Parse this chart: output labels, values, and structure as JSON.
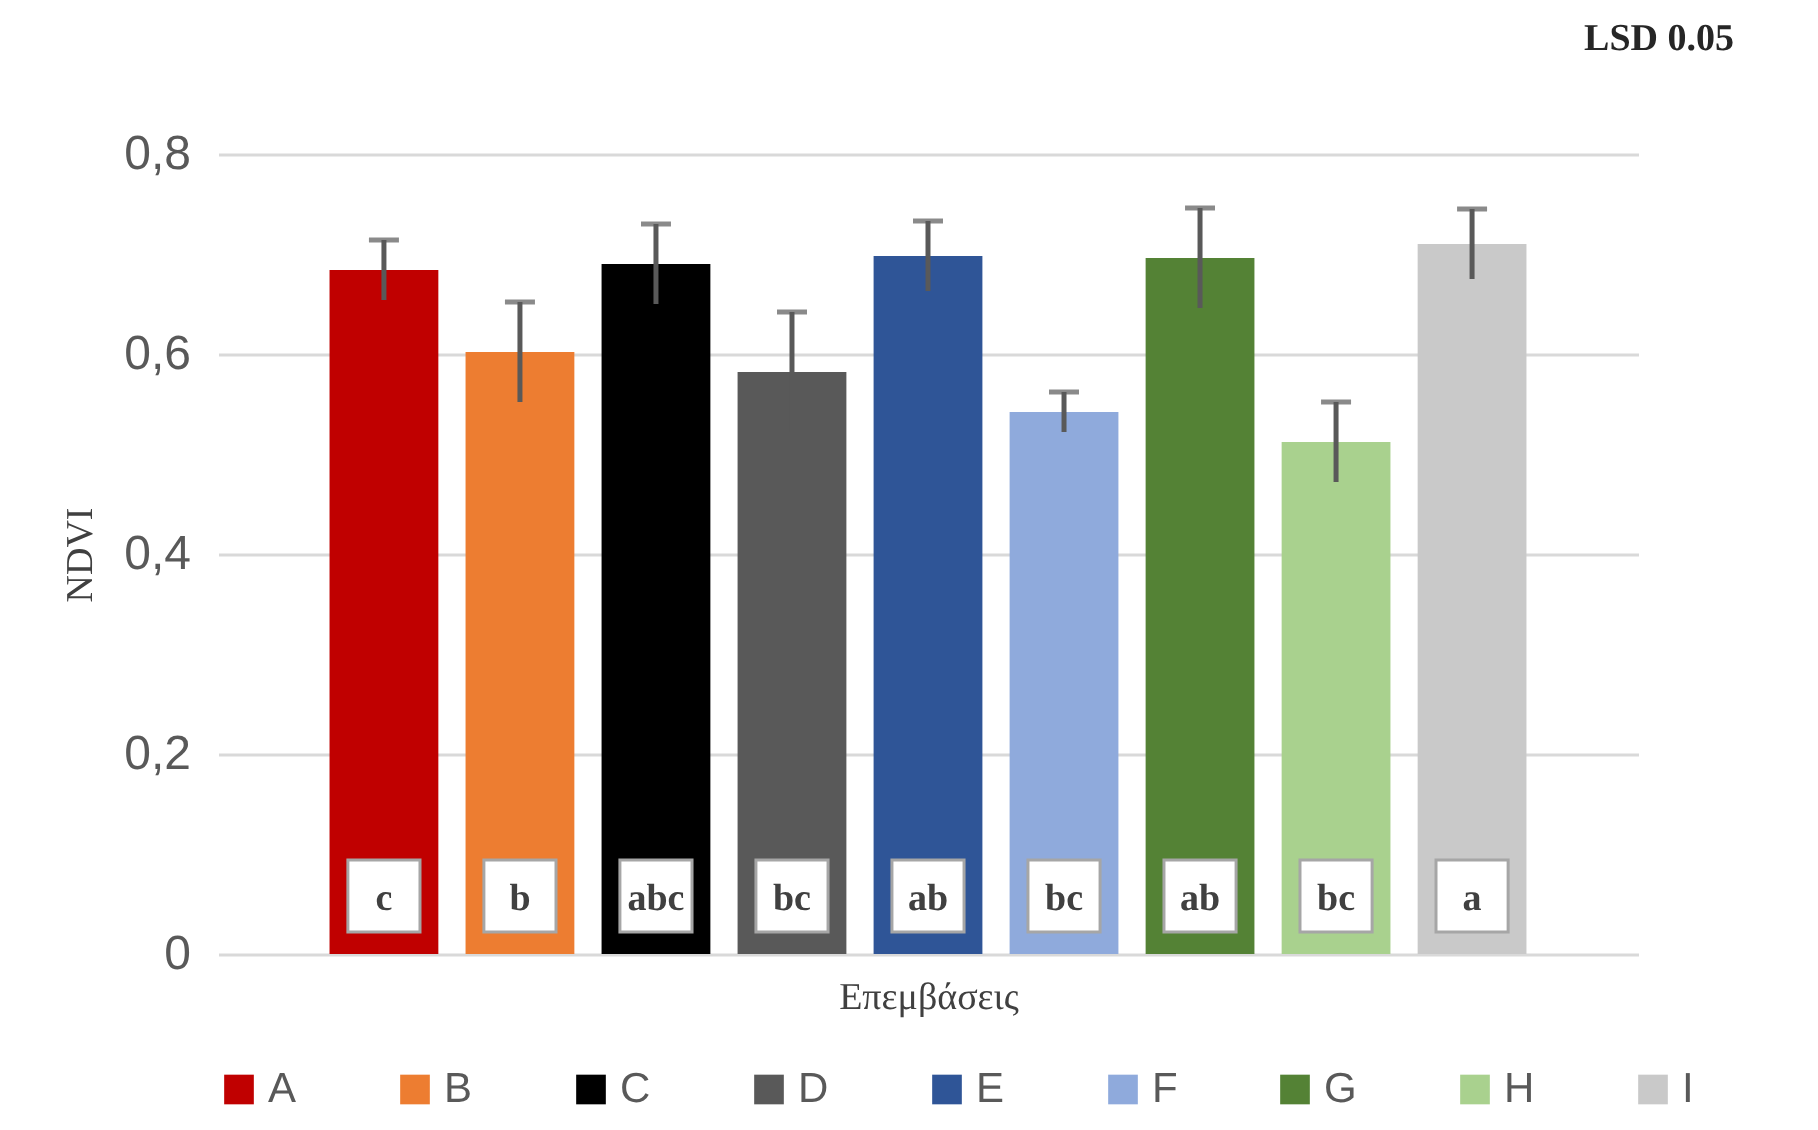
{
  "chart_data": {
    "type": "bar",
    "ylabel": "NDVI",
    "xlabel": "Επεμβάσεις",
    "annotations": [
      "LSD 0.05"
    ],
    "categories": [
      null
    ],
    "series": [
      {
        "name": "A",
        "color": "#c00000",
        "values": [
          0.684
        ],
        "errors": [
          0.03
        ],
        "value_labels": [
          "c"
        ]
      },
      {
        "name": "B",
        "color": "#ed7d31",
        "values": [
          0.602
        ],
        "errors": [
          0.05
        ],
        "value_labels": [
          "b"
        ]
      },
      {
        "name": "C",
        "color": "#000000",
        "values": [
          0.69
        ],
        "errors": [
          0.04
        ],
        "value_labels": [
          "abc"
        ]
      },
      {
        "name": "D",
        "color": "#595959",
        "values": [
          0.582
        ],
        "errors": [
          0.06
        ],
        "value_labels": [
          "bc"
        ]
      },
      {
        "name": "E",
        "color": "#2f5597",
        "values": [
          0.698
        ],
        "errors": [
          0.035
        ],
        "value_labels": [
          "ab"
        ]
      },
      {
        "name": "F",
        "color": "#8faadc",
        "values": [
          0.542
        ],
        "errors": [
          0.02
        ],
        "value_labels": [
          "bc"
        ]
      },
      {
        "name": "G",
        "color": "#548235",
        "values": [
          0.696
        ],
        "errors": [
          0.05
        ],
        "value_labels": [
          "ab"
        ]
      },
      {
        "name": "H",
        "color": "#a9d18e",
        "values": [
          0.512
        ],
        "errors": [
          0.04
        ],
        "value_labels": [
          "bc"
        ]
      },
      {
        "name": "I",
        "color": "#c9c9c9",
        "values": [
          0.71
        ],
        "errors": [
          0.035
        ],
        "value_labels": [
          "a"
        ]
      }
    ],
    "ylim": [
      0,
      0.8
    ],
    "yticks": [
      {
        "value": 0,
        "label": "0"
      },
      {
        "value": 0.2,
        "label": "0,2"
      },
      {
        "value": 0.4,
        "label": "0,4"
      },
      {
        "value": 0.6,
        "label": "0,6"
      },
      {
        "value": 0.8,
        "label": "0,8"
      }
    ],
    "grid": "y",
    "legend": "bottom",
    "tick_labels": "y"
  }
}
